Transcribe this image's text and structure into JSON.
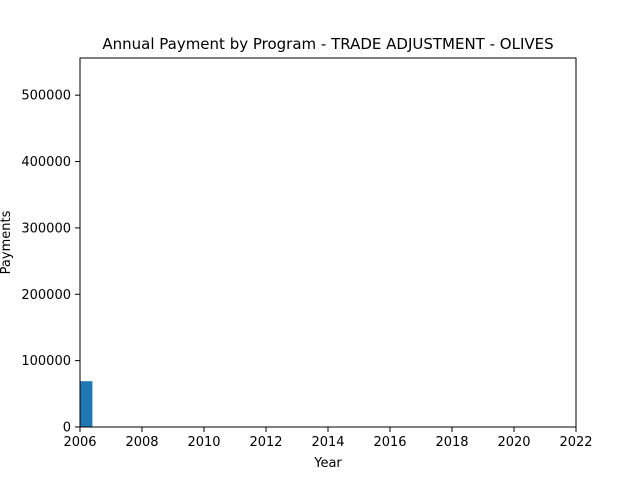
{
  "chart_data": {
    "type": "bar",
    "title": "Annual Payment by Program - TRADE ADJUSTMENT - OLIVES",
    "xlabel": "Year",
    "ylabel": "Payments",
    "x": [
      2006
    ],
    "values": [
      69000
    ],
    "bar_width_years": 0.4,
    "xlim": [
      2006,
      2022
    ],
    "ylim": [
      0,
      556000
    ],
    "xticks": [
      2006,
      2008,
      2010,
      2012,
      2014,
      2016,
      2018,
      2020,
      2022
    ],
    "yticks": [
      0,
      100000,
      200000,
      300000,
      400000,
      500000
    ],
    "grid": false,
    "legend": "none",
    "bar_color": "#1f77b4"
  }
}
